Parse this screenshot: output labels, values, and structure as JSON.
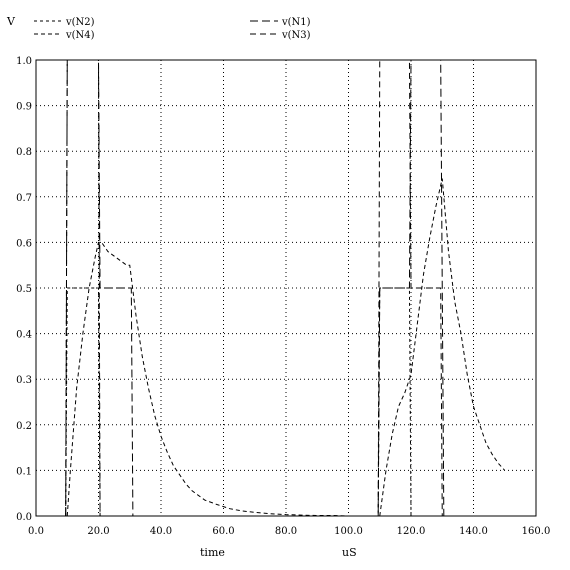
{
  "chart_data": {
    "type": "line",
    "title": "",
    "ylabel": "V",
    "xlabel": "time",
    "xunit": "uS",
    "xlim": [
      0,
      160
    ],
    "ylim": [
      0,
      1.0
    ],
    "x_ticks": [
      "0.0",
      "20.0",
      "40.0",
      "60.0",
      "80.0",
      "100.0",
      "120.0",
      "140.0",
      "160.0"
    ],
    "y_ticks": [
      "0.0",
      "0.1",
      "0.2",
      "0.3",
      "0.4",
      "0.5",
      "0.6",
      "0.7",
      "0.8",
      "0.9",
      "1.0"
    ],
    "grid": true,
    "legend_position": "top",
    "series": [
      {
        "name": "v(N2)",
        "dash": "3,3",
        "x": [
          9.5,
          10,
          20,
          20.5,
          30.5,
          31,
          109.5,
          110,
          119.5,
          120,
          129.5,
          130
        ],
        "y": [
          0,
          0.5,
          0.5,
          0,
          0,
          0,
          0,
          0.5,
          0.5,
          0,
          0,
          0
        ]
      },
      {
        "name": "v(N1)",
        "dash": "8,4",
        "x": [
          9.5,
          10,
          19.5,
          20,
          20.5,
          30,
          30.5,
          31,
          109.5,
          110,
          119.5,
          120,
          129.5,
          130,
          130.5
        ],
        "y": [
          0,
          1.0,
          1.0,
          1.0,
          0.5,
          0.5,
          0.5,
          0,
          0,
          0.5,
          0.5,
          1.0,
          1.0,
          0.5,
          0
        ]
      },
      {
        "name": "v(N4)",
        "dash": "4,3",
        "x": [
          10,
          11,
          13,
          15,
          17,
          19,
          20,
          21,
          23,
          25,
          27,
          29,
          30,
          32,
          34,
          36,
          38,
          40,
          42,
          44,
          46,
          48,
          50,
          54,
          58,
          62,
          66,
          70,
          75,
          80,
          85,
          90,
          95,
          100
        ],
        "y": [
          0,
          0.1,
          0.28,
          0.4,
          0.5,
          0.57,
          0.6,
          0.6,
          0.58,
          0.57,
          0.56,
          0.55,
          0.55,
          0.44,
          0.35,
          0.28,
          0.22,
          0.175,
          0.14,
          0.11,
          0.09,
          0.07,
          0.055,
          0.035,
          0.025,
          0.016,
          0.011,
          0.008,
          0.005,
          0.003,
          0.002,
          0.001,
          0.001,
          0
        ]
      },
      {
        "name": "v(N3)",
        "dash": "6,4",
        "x": [
          9.5,
          10,
          20,
          20.5,
          30.5,
          31,
          109.5,
          110,
          119.5,
          120,
          129.5,
          130,
          130.5
        ],
        "y": [
          0,
          1.0,
          1.0,
          0,
          0,
          0,
          0,
          1.0,
          1.0,
          0.5,
          0.5,
          0,
          0
        ]
      },
      {
        "name": "",
        "dash": "4,3",
        "x": [
          110,
          112,
          114,
          116,
          118,
          120,
          122,
          124,
          126,
          128,
          130,
          132,
          134,
          136,
          138,
          140,
          142,
          144,
          146,
          148,
          150
        ],
        "y": [
          0,
          0.1,
          0.18,
          0.24,
          0.27,
          0.31,
          0.42,
          0.53,
          0.61,
          0.68,
          0.74,
          0.58,
          0.47,
          0.4,
          0.31,
          0.24,
          0.2,
          0.16,
          0.135,
          0.115,
          0.1
        ]
      }
    ]
  }
}
